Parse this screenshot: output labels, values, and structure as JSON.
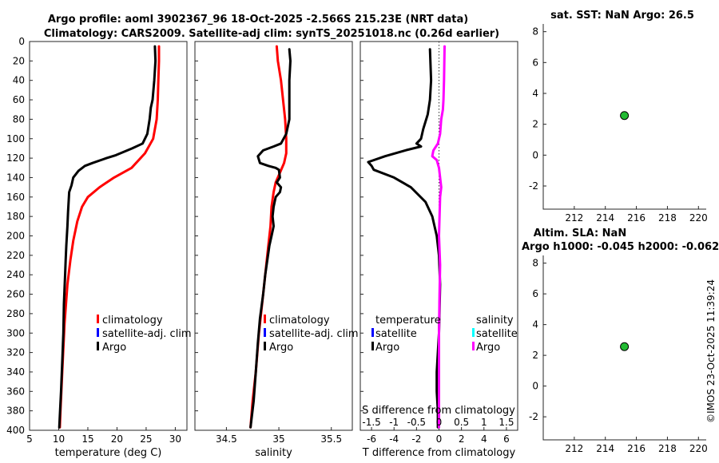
{
  "figure": {
    "title_line1": "Argo profile: aoml 3902367_96 18-Oct-2025 -2.566S 215.23E (NRT data)",
    "title_line2": "Climatology: CARS2009. Satellite-adj clim: synTS_20251018.nc (0.26d earlier)",
    "timestamp": "©IMOS 23-Oct-2025 11:39:24"
  },
  "colors": {
    "climatology": "#ff0000",
    "satellite": "#0000ff",
    "argo": "#000000",
    "satellite_salinity": "#00ffff",
    "argo_salinity": "#ff00ff",
    "marker": "#22bb33"
  },
  "chart_data": [
    {
      "id": "temperature",
      "type": "line",
      "xlabel": "temperature (deg C)",
      "ylabel": "",
      "xlim": [
        5,
        32
      ],
      "ylim": [
        400,
        0
      ],
      "xticks": [
        5,
        10,
        15,
        20,
        25,
        30
      ],
      "yticks": [
        0,
        20,
        40,
        60,
        80,
        100,
        120,
        140,
        160,
        180,
        200,
        220,
        240,
        260,
        280,
        300,
        320,
        340,
        360,
        380,
        400
      ],
      "legend": [
        "climatology",
        "satellite-adj. clim",
        "Argo"
      ],
      "series": [
        {
          "name": "climatology",
          "color": "#ff0000",
          "points": [
            [
              27.2,
              5
            ],
            [
              27.2,
              20
            ],
            [
              27.1,
              40
            ],
            [
              27.0,
              60
            ],
            [
              26.8,
              80
            ],
            [
              26.2,
              100
            ],
            [
              24.8,
              115
            ],
            [
              22.5,
              130
            ],
            [
              19.5,
              140
            ],
            [
              17.0,
              150
            ],
            [
              15.0,
              160
            ],
            [
              14.0,
              170
            ],
            [
              13.2,
              185
            ],
            [
              12.5,
              205
            ],
            [
              12.0,
              225
            ],
            [
              11.5,
              250
            ],
            [
              11.0,
              290
            ],
            [
              10.6,
              340
            ],
            [
              10.3,
              380
            ],
            [
              10.2,
              397
            ]
          ]
        },
        {
          "name": "Argo",
          "color": "#000000",
          "points": [
            [
              26.5,
              5
            ],
            [
              26.6,
              20
            ],
            [
              26.4,
              40
            ],
            [
              26.1,
              60
            ],
            [
              25.8,
              68
            ],
            [
              25.6,
              80
            ],
            [
              25.2,
              95
            ],
            [
              24.4,
              105
            ],
            [
              22.6,
              110
            ],
            [
              21.0,
              114
            ],
            [
              19.8,
              117
            ],
            [
              18.2,
              120
            ],
            [
              15.8,
              125
            ],
            [
              14.5,
              128
            ],
            [
              13.4,
              133
            ],
            [
              12.5,
              140
            ],
            [
              12.2,
              148
            ],
            [
              11.8,
              155
            ],
            [
              11.7,
              165
            ],
            [
              11.6,
              175
            ],
            [
              11.5,
              190
            ],
            [
              11.3,
              210
            ],
            [
              11.2,
              225
            ],
            [
              11.1,
              240
            ],
            [
              10.9,
              270
            ],
            [
              10.8,
              300
            ],
            [
              10.6,
              330
            ],
            [
              10.4,
              360
            ],
            [
              10.2,
              385
            ],
            [
              10.1,
              397
            ]
          ]
        }
      ]
    },
    {
      "id": "salinity",
      "type": "line",
      "xlabel": "salinity",
      "ylabel": "",
      "xlim": [
        34.2,
        35.7
      ],
      "ylim": [
        400,
        0
      ],
      "xticks": [
        34.5,
        35,
        35.5
      ],
      "legend": [
        "climatology",
        "satellite-adj. clim",
        "Argo"
      ],
      "series": [
        {
          "name": "climatology",
          "color": "#ff0000",
          "points": [
            [
              34.98,
              5
            ],
            [
              34.99,
              20
            ],
            [
              35.02,
              40
            ],
            [
              35.04,
              60
            ],
            [
              35.06,
              80
            ],
            [
              35.07,
              100
            ],
            [
              35.07,
              115
            ],
            [
              35.05,
              125
            ],
            [
              35.01,
              135
            ],
            [
              34.97,
              145
            ],
            [
              34.95,
              155
            ],
            [
              34.93,
              170
            ],
            [
              34.92,
              190
            ],
            [
              34.9,
              210
            ],
            [
              34.87,
              240
            ],
            [
              34.84,
              270
            ],
            [
              34.81,
              300
            ],
            [
              34.78,
              340
            ],
            [
              34.75,
              370
            ],
            [
              34.73,
              397
            ]
          ]
        },
        {
          "name": "Argo",
          "color": "#000000",
          "points": [
            [
              35.1,
              8
            ],
            [
              35.11,
              20
            ],
            [
              35.1,
              40
            ],
            [
              35.1,
              60
            ],
            [
              35.1,
              80
            ],
            [
              35.07,
              95
            ],
            [
              35.02,
              105
            ],
            [
              34.95,
              108
            ],
            [
              34.85,
              112
            ],
            [
              34.8,
              118
            ],
            [
              34.82,
              125
            ],
            [
              34.9,
              128
            ],
            [
              34.97,
              130
            ],
            [
              35.0,
              132
            ],
            [
              35.01,
              140
            ],
            [
              34.98,
              145
            ],
            [
              35.02,
              150
            ],
            [
              35.01,
              155
            ],
            [
              34.97,
              160
            ],
            [
              34.95,
              170
            ],
            [
              34.94,
              180
            ],
            [
              34.95,
              190
            ],
            [
              34.93,
              200
            ],
            [
              34.91,
              210
            ],
            [
              34.89,
              225
            ],
            [
              34.87,
              240
            ],
            [
              34.85,
              260
            ],
            [
              34.82,
              285
            ],
            [
              34.8,
              310
            ],
            [
              34.78,
              340
            ],
            [
              34.76,
              370
            ],
            [
              34.73,
              397
            ]
          ]
        }
      ]
    },
    {
      "id": "difference",
      "type": "line",
      "xlabel": "T difference from climatology",
      "xlabel_top": "S difference from climatology",
      "xlim": [
        -7,
        7
      ],
      "ylim": [
        400,
        0
      ],
      "xticks": [
        -6,
        -4,
        -2,
        0,
        2,
        4,
        6
      ],
      "top_ticks": [
        {
          "label": "-1.5",
          "t_value": -6
        },
        {
          "label": "-1",
          "t_value": -4
        },
        {
          "label": "-0.5",
          "t_value": -2
        },
        {
          "label": "0",
          "t_value": 0
        },
        {
          "label": "0.5",
          "t_value": 2
        },
        {
          "label": "1",
          "t_value": 4
        },
        {
          "label": "1.5",
          "t_value": 6
        }
      ],
      "legend_groups": [
        {
          "heading": "temperature",
          "entries": [
            "satellite",
            "Argo"
          ]
        },
        {
          "heading": "salinity",
          "entries": [
            "satellite",
            "Argo"
          ]
        }
      ],
      "series": [
        {
          "name": "temperature Argo",
          "color": "#000000",
          "points": [
            [
              -0.8,
              8
            ],
            [
              -0.7,
              40
            ],
            [
              -0.8,
              60
            ],
            [
              -1.0,
              75
            ],
            [
              -1.4,
              90
            ],
            [
              -1.6,
              100
            ],
            [
              -2.0,
              105
            ],
            [
              -1.6,
              108
            ],
            [
              -3.0,
              112
            ],
            [
              -4.8,
              118
            ],
            [
              -6.3,
              124
            ],
            [
              -6.0,
              128
            ],
            [
              -5.8,
              132
            ],
            [
              -4.0,
              140
            ],
            [
              -2.5,
              150
            ],
            [
              -1.2,
              165
            ],
            [
              -0.6,
              180
            ],
            [
              -0.2,
              200
            ],
            [
              0,
              220
            ],
            [
              0.1,
              250
            ],
            [
              0,
              300
            ],
            [
              -0.2,
              340
            ],
            [
              -0.2,
              360
            ],
            [
              -0.1,
              380
            ],
            [
              -0.1,
              397
            ]
          ]
        },
        {
          "name": "salinity Argo",
          "color": "#ff00ff",
          "points": [
            [
              0.5,
              5
            ],
            [
              0.45,
              40
            ],
            [
              0.4,
              60
            ],
            [
              0.35,
              70
            ],
            [
              0.2,
              80
            ],
            [
              0.1,
              95
            ],
            [
              -0.1,
              105
            ],
            [
              -0.5,
              112
            ],
            [
              -0.6,
              118
            ],
            [
              -0.2,
              122
            ],
            [
              0,
              130
            ],
            [
              0.1,
              140
            ],
            [
              0.2,
              150
            ],
            [
              0.1,
              160
            ],
            [
              0.05,
              180
            ],
            [
              0,
              200
            ],
            [
              0.1,
              230
            ],
            [
              0.05,
              260
            ],
            [
              0,
              300
            ],
            [
              0,
              350
            ],
            [
              0,
              397
            ]
          ]
        }
      ]
    },
    {
      "id": "sst_map",
      "type": "scatter",
      "title": "sat. SST: NaN Argo: 26.5",
      "xlim": [
        210,
        220.5
      ],
      "ylim": [
        -3.5,
        8.5
      ],
      "xticks": [
        212,
        214,
        216,
        218,
        220
      ],
      "yticks": [
        -2,
        0,
        2,
        4,
        6,
        8
      ],
      "points": [
        [
          215.23,
          -2.566
        ]
      ]
    },
    {
      "id": "sla_map",
      "type": "scatter",
      "title": "Altim. SLA: NaN",
      "subtitle": "Argo h1000: -0.045 h2000: -0.062",
      "xlim": [
        210,
        220.5
      ],
      "ylim": [
        -3.5,
        8.5
      ],
      "xticks": [
        212,
        214,
        216,
        218,
        220
      ],
      "yticks": [
        -2,
        0,
        2,
        4,
        6,
        8
      ],
      "points": [
        [
          215.23,
          -2.566
        ]
      ]
    }
  ]
}
